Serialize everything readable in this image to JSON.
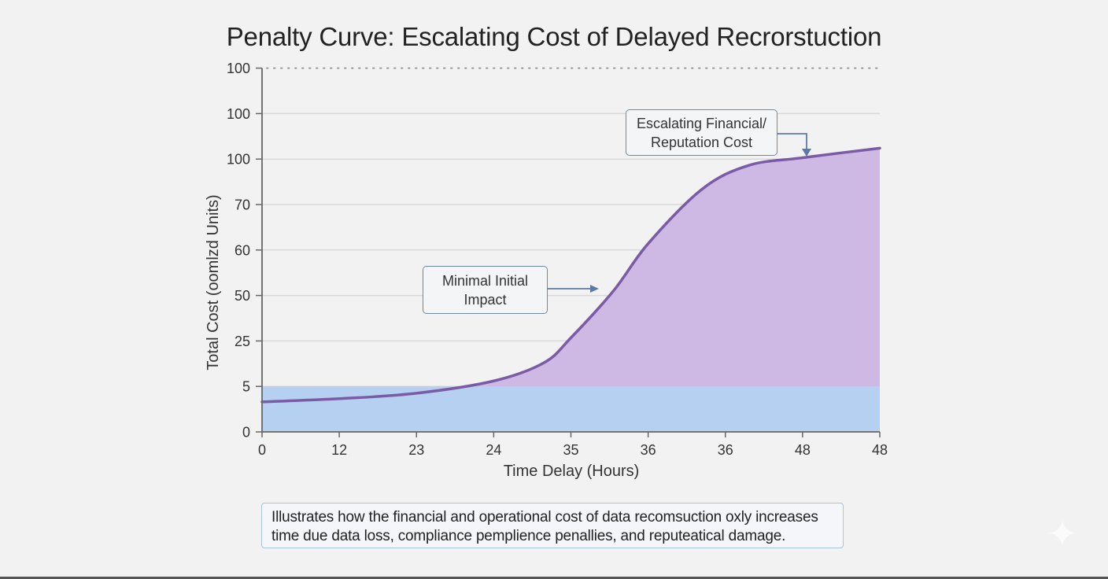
{
  "chart_data": {
    "type": "area",
    "title": "Penalty Curve: Escalating Cost of Delayed Recrorstuction",
    "xlabel": "Time Delay (Hours)",
    "ylabel": "Total Cost (oomlzd Units)",
    "x_tick_labels": [
      "0",
      "12",
      "23",
      "24",
      "35",
      "36",
      "36",
      "48",
      "48"
    ],
    "y_tick_labels": [
      "0",
      "5",
      "25",
      "50",
      "60",
      "70",
      "100",
      "100"
    ],
    "y_top_dotted_label": "100",
    "grid": true,
    "note": "Axis tick labels are non-uniform as printed; series positions are expressed as tick-index coordinates (x index 0-8, y index 0-7).",
    "series": [
      {
        "name": "Penalty curve",
        "kind": "line",
        "color": "#7b5aa6",
        "x_index": [
          0,
          1,
          2,
          3,
          3.65,
          4,
          4.55,
          5,
          5.7,
          6.3,
          7,
          8
        ],
        "y_index": [
          0.66,
          0.73,
          0.85,
          1.12,
          1.52,
          2.07,
          3.1,
          4.14,
          5.34,
          5.86,
          6.03,
          6.24
        ]
      },
      {
        "name": "Baseline band",
        "kind": "band",
        "color": "#b5d0f0",
        "y_index_top": 1
      },
      {
        "name": "Escalation area",
        "kind": "area",
        "color": "#cdb9e3"
      }
    ],
    "annotations": [
      {
        "id": "minimal",
        "lines": [
          "Minimal Initial",
          "Impact"
        ]
      },
      {
        "id": "escalating",
        "lines": [
          "Escalating Financial/",
          "Reputation Cost"
        ]
      }
    ]
  },
  "caption": {
    "line1": "Illustrates how the financial and operational cost of data recomsuction oxly increases",
    "line2": "time due data loss, compliance pemplience penallies, and reputeatical damage."
  },
  "icons": {
    "watermark": "sparkle-icon"
  },
  "colors": {
    "axis": "#666666",
    "grid": "#d9d9d9",
    "annotation_border": "#6f88a8",
    "arrow": "#5a7ba6"
  }
}
